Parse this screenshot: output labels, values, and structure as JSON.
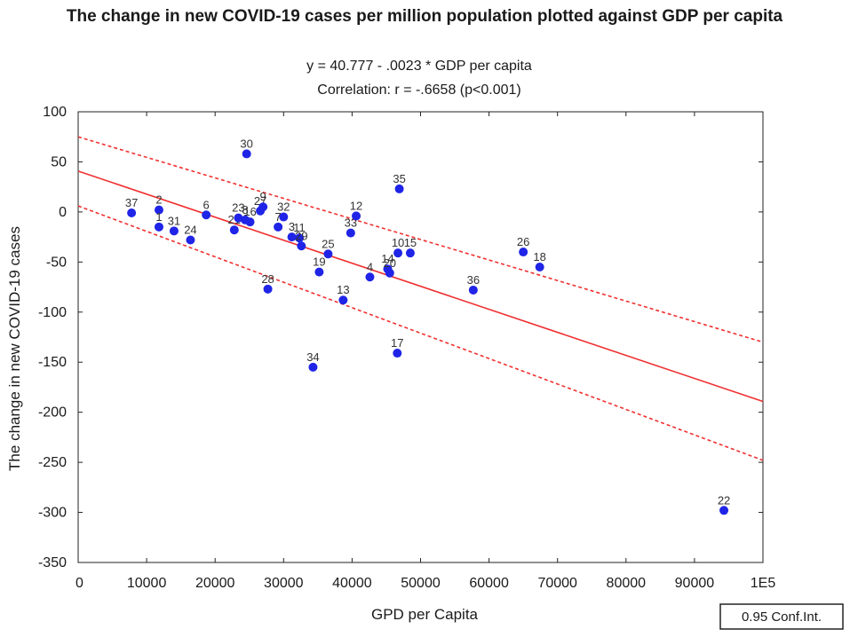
{
  "chart_data": {
    "type": "scatter",
    "title": "The change in new COVID-19 cases per million population plotted against GDP per capita",
    "equation": "y = 40.777 - .0023  * GDP per capita",
    "correlation": "Correlation: r = -.6658 (p<0.001)",
    "xlabel": "GPD per Capita",
    "ylabel": "The change in new COVID-19 cases",
    "xlim": [
      0,
      100000
    ],
    "ylim": [
      -350,
      100
    ],
    "x_ticks": [
      0,
      10000,
      20000,
      30000,
      40000,
      50000,
      60000,
      70000,
      80000,
      90000,
      100000
    ],
    "x_tick_labels": [
      "0",
      "10000",
      "20000",
      "30000",
      "40000",
      "50000",
      "60000",
      "70000",
      "80000",
      "90000",
      "1E5"
    ],
    "y_ticks": [
      100,
      50,
      0,
      -50,
      -100,
      -150,
      -200,
      -250,
      -300,
      -350
    ],
    "y_tick_labels": [
      "100",
      "50",
      "0",
      "-50",
      "-100",
      "-150",
      "-200",
      "-250",
      "-300",
      "-350"
    ],
    "regression": {
      "intercept": 40.777,
      "slope": -0.0023
    },
    "confidence_band": {
      "upper": [
        [
          0,
          75
        ],
        [
          100000,
          -130
        ]
      ],
      "lower": [
        [
          0,
          6
        ],
        [
          100000,
          -248
        ]
      ]
    },
    "legend": "0.95 Conf.Int.",
    "points": [
      {
        "label": "37",
        "x": 7800,
        "y": -1
      },
      {
        "label": "2",
        "x": 11800,
        "y": 2
      },
      {
        "label": "1",
        "x": 11800,
        "y": -15
      },
      {
        "label": "31",
        "x": 14000,
        "y": -19
      },
      {
        "label": "24",
        "x": 16400,
        "y": -28
      },
      {
        "label": "6",
        "x": 18700,
        "y": -3
      },
      {
        "label": "21",
        "x": 22800,
        "y": -18
      },
      {
        "label": "23",
        "x": 23400,
        "y": -6
      },
      {
        "label": "30",
        "x": 24600,
        "y": 58
      },
      {
        "label": "8",
        "x": 24400,
        "y": -8
      },
      {
        "label": "16",
        "x": 25100,
        "y": -10
      },
      {
        "label": "27",
        "x": 26600,
        "y": 1
      },
      {
        "label": "9",
        "x": 27000,
        "y": 5
      },
      {
        "label": "28",
        "x": 27700,
        "y": -77
      },
      {
        "label": "7",
        "x": 29200,
        "y": -15
      },
      {
        "label": "32",
        "x": 30000,
        "y": -5
      },
      {
        "label": "3",
        "x": 31200,
        "y": -25
      },
      {
        "label": "11",
        "x": 32300,
        "y": -26
      },
      {
        "label": "29",
        "x": 32600,
        "y": -34
      },
      {
        "label": "19",
        "x": 35200,
        "y": -60
      },
      {
        "label": "25",
        "x": 36500,
        "y": -42
      },
      {
        "label": "34",
        "x": 34300,
        "y": -155
      },
      {
        "label": "13",
        "x": 38700,
        "y": -88
      },
      {
        "label": "33",
        "x": 39800,
        "y": -21
      },
      {
        "label": "12",
        "x": 40600,
        "y": -4
      },
      {
        "label": "4",
        "x": 42600,
        "y": -65
      },
      {
        "label": "14",
        "x": 45200,
        "y": -57
      },
      {
        "label": "20",
        "x": 45500,
        "y": -61
      },
      {
        "label": "35",
        "x": 46900,
        "y": 23
      },
      {
        "label": "10",
        "x": 46700,
        "y": -41
      },
      {
        "label": "15",
        "x": 48500,
        "y": -41
      },
      {
        "label": "17",
        "x": 46600,
        "y": -141
      },
      {
        "label": "36",
        "x": 57700,
        "y": -78
      },
      {
        "label": "26",
        "x": 65000,
        "y": -40
      },
      {
        "label": "18",
        "x": 67400,
        "y": -55
      },
      {
        "label": "22",
        "x": 94300,
        "y": -298
      }
    ],
    "colors": {
      "point": "#1f24e6",
      "regression": "#f03030",
      "frame": "#222222"
    }
  }
}
